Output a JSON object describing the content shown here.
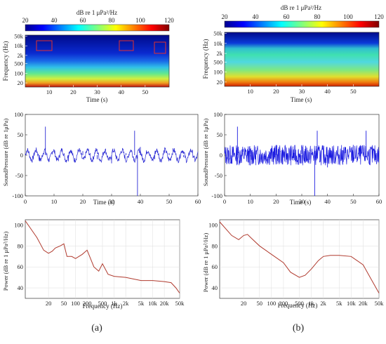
{
  "figure": {
    "panels": [
      {
        "id": "a",
        "caption": "(a)",
        "colorbar": {
          "title": "dB re 1 μPa²/Hz",
          "ticks": [
            20,
            40,
            60,
            80,
            100,
            120
          ]
        },
        "spectrogram": {
          "ylabel": "Frequency (Hz)",
          "xlabel": "Time (s)",
          "yticks": [
            "50k",
            "10k",
            "2k",
            "500",
            "100",
            "20"
          ],
          "xticks": [
            10,
            20,
            30,
            40,
            50
          ]
        },
        "waveform": {
          "ylabel": "SoundPressure (dB re 1μPa)",
          "xlabel": "Time (s)",
          "yticks": [
            100,
            50,
            0,
            -50,
            -100
          ],
          "xticks": [
            0,
            10,
            20,
            30,
            40,
            50,
            60
          ]
        },
        "psd": {
          "ylabel": "Power (dB re 1 μPa²/Hz)",
          "xlabel": "Frequency (Hz)",
          "yticks": [
            100,
            80,
            60,
            40
          ],
          "xticks": [
            "20",
            "50",
            "100",
            "200",
            "500",
            "1k",
            "2k",
            "5k",
            "10k",
            "20k",
            "50k"
          ]
        }
      },
      {
        "id": "b",
        "caption": "(b)",
        "colorbar": {
          "title": "dB re 1 μPa²/Hz",
          "ticks": [
            20,
            40,
            60,
            80,
            100,
            120
          ]
        },
        "spectrogram": {
          "ylabel": "Frequency (Hz)",
          "xlabel": "Time (s)",
          "yticks": [
            "50k",
            "10k",
            "2k",
            "500",
            "100",
            "20"
          ],
          "xticks": [
            10,
            20,
            30,
            40,
            50
          ]
        },
        "waveform": {
          "ylabel": "SoundPressure (dB re 1μPa)",
          "xlabel": "Time (s)",
          "yticks": [
            100,
            50,
            0,
            -50,
            -100
          ],
          "xticks": [
            0,
            10,
            20,
            30,
            40,
            50,
            60
          ]
        },
        "psd": {
          "ylabel": "Power (dB re 1 μPa²/Hz)",
          "xlabel": "Frequency (Hz)",
          "yticks": [
            100,
            80,
            60,
            40
          ],
          "xticks": [
            "20",
            "50",
            "100",
            "200",
            "500",
            "1k",
            "2k",
            "5k",
            "10k",
            "20k",
            "50k"
          ]
        }
      }
    ]
  },
  "chart_data": [
    {
      "type": "heatmap",
      "panel": "a",
      "title": "",
      "xlabel": "Time (s)",
      "ylabel": "Frequency (Hz)",
      "xlim": [
        0,
        60
      ],
      "ylim": [
        10,
        60000
      ],
      "yscale": "log",
      "colorbar_range": [
        20,
        120
      ],
      "colorbar_label": "dB re 1 μPa²/Hz",
      "colormap": "jet"
    },
    {
      "type": "line",
      "panel": "a",
      "title": "",
      "xlabel": "Time (s)",
      "ylabel": "SoundPressure (dB re 1μPa)",
      "xlim": [
        0,
        60
      ],
      "ylim": [
        -100,
        100
      ],
      "line_color": "#2a2ad4",
      "grid": false,
      "x": [
        0,
        5,
        7,
        10,
        15,
        20,
        25,
        30,
        35,
        38,
        39,
        40,
        45,
        50,
        55,
        60
      ],
      "y": [
        0,
        -10,
        70,
        0,
        -15,
        10,
        -10,
        -20,
        5,
        60,
        -100,
        20,
        -10,
        5,
        -5,
        0
      ]
    },
    {
      "type": "line",
      "panel": "a",
      "title": "",
      "xlabel": "Frequency (Hz)",
      "ylabel": "Power (dB re 1 μPa²/Hz)",
      "xscale": "log",
      "xlim": [
        5,
        50000
      ],
      "ylim": [
        30,
        105
      ],
      "line_color": "#b03a2e",
      "grid": true,
      "x": [
        5,
        10,
        15,
        20,
        25,
        30,
        40,
        50,
        60,
        80,
        100,
        150,
        200,
        300,
        400,
        500,
        700,
        1000,
        2000,
        5000,
        10000,
        20000,
        30000,
        40000,
        50000
      ],
      "y": [
        104,
        88,
        76,
        73,
        75,
        78,
        80,
        82,
        70,
        70,
        68,
        72,
        76,
        60,
        56,
        63,
        53,
        51,
        50,
        47,
        47,
        46,
        45,
        40,
        35
      ]
    },
    {
      "type": "heatmap",
      "panel": "b",
      "title": "",
      "xlabel": "Time (s)",
      "ylabel": "Frequency (Hz)",
      "xlim": [
        0,
        60
      ],
      "ylim": [
        10,
        60000
      ],
      "yscale": "log",
      "colorbar_range": [
        20,
        120
      ],
      "colorbar_label": "dB re 1 μPa²/Hz",
      "colormap": "jet"
    },
    {
      "type": "line",
      "panel": "b",
      "title": "",
      "xlabel": "Time (s)",
      "ylabel": "SoundPressure (dB re 1μPa)",
      "xlim": [
        0,
        60
      ],
      "ylim": [
        -100,
        100
      ],
      "line_color": "#1a1ae0",
      "grid": false,
      "x": [
        0,
        5,
        10,
        20,
        30,
        35,
        36,
        40,
        50,
        55,
        60
      ],
      "y": [
        0,
        70,
        -25,
        25,
        -20,
        -100,
        60,
        -30,
        25,
        60,
        0
      ]
    },
    {
      "type": "line",
      "panel": "b",
      "title": "",
      "xlabel": "Frequency (Hz)",
      "ylabel": "Power (dB re 1 μPa²/Hz)",
      "xscale": "log",
      "xlim": [
        5,
        50000
      ],
      "ylim": [
        30,
        105
      ],
      "line_color": "#b03a2e",
      "grid": true,
      "x": [
        5,
        10,
        15,
        20,
        25,
        30,
        50,
        100,
        200,
        300,
        500,
        700,
        1000,
        1500,
        2000,
        3000,
        5000,
        10000,
        20000,
        30000,
        50000
      ],
      "y": [
        103,
        90,
        86,
        90,
        91,
        88,
        80,
        72,
        64,
        55,
        50,
        52,
        58,
        66,
        70,
        71,
        71,
        70,
        62,
        50,
        35
      ]
    }
  ]
}
